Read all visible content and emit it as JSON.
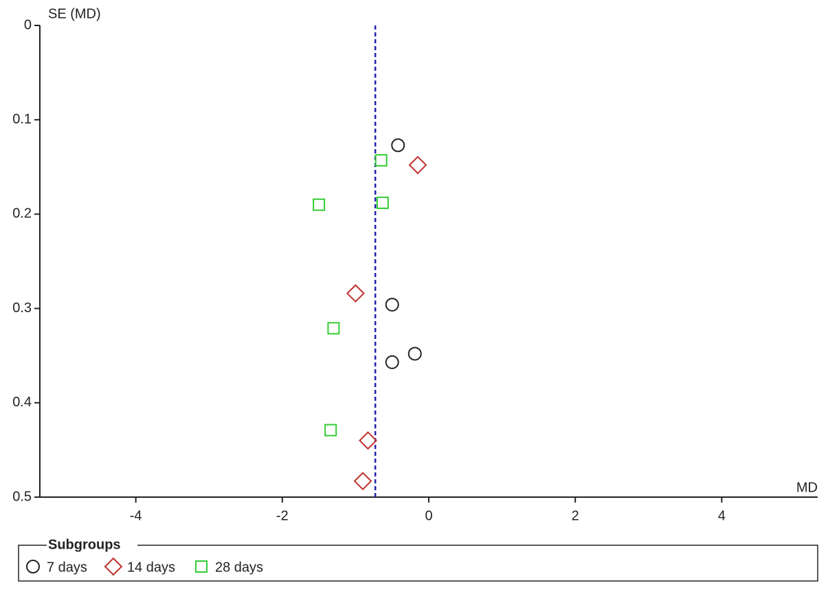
{
  "chart_data": {
    "type": "scatter",
    "x_label": "MD",
    "y_label": "SE (MD)",
    "xlim": [
      -5.31,
      5.31
    ],
    "ylim": [
      0,
      0.5
    ],
    "y_reversed": true,
    "xticks": [
      -4,
      -2,
      0,
      2,
      4
    ],
    "yticks": [
      0,
      0.1,
      0.2,
      0.3,
      0.4,
      0.5
    ],
    "grid": false,
    "reference_line": {
      "x": -0.73,
      "color": "#2222aa"
    },
    "legend_title": "Subgroups",
    "legend_position": "bottom",
    "series": [
      {
        "name": "7 days",
        "color": "#222222",
        "marker": "circle",
        "x": [
          -0.42,
          -0.5,
          -0.19,
          -0.5
        ],
        "values": [
          0.127,
          0.296,
          0.348,
          0.357
        ]
      },
      {
        "name": "14 days",
        "color": "#c0302c",
        "marker": "diamond",
        "x": [
          -0.15,
          -1.0,
          -0.83,
          -0.9
        ],
        "values": [
          0.148,
          0.284,
          0.44,
          0.483
        ]
      },
      {
        "name": "28 days",
        "color": "#33cc33",
        "marker": "square",
        "x": [
          -0.65,
          -1.5,
          -0.63,
          -1.3,
          -1.34
        ],
        "values": [
          0.143,
          0.19,
          0.188,
          0.321,
          0.429
        ]
      }
    ]
  }
}
